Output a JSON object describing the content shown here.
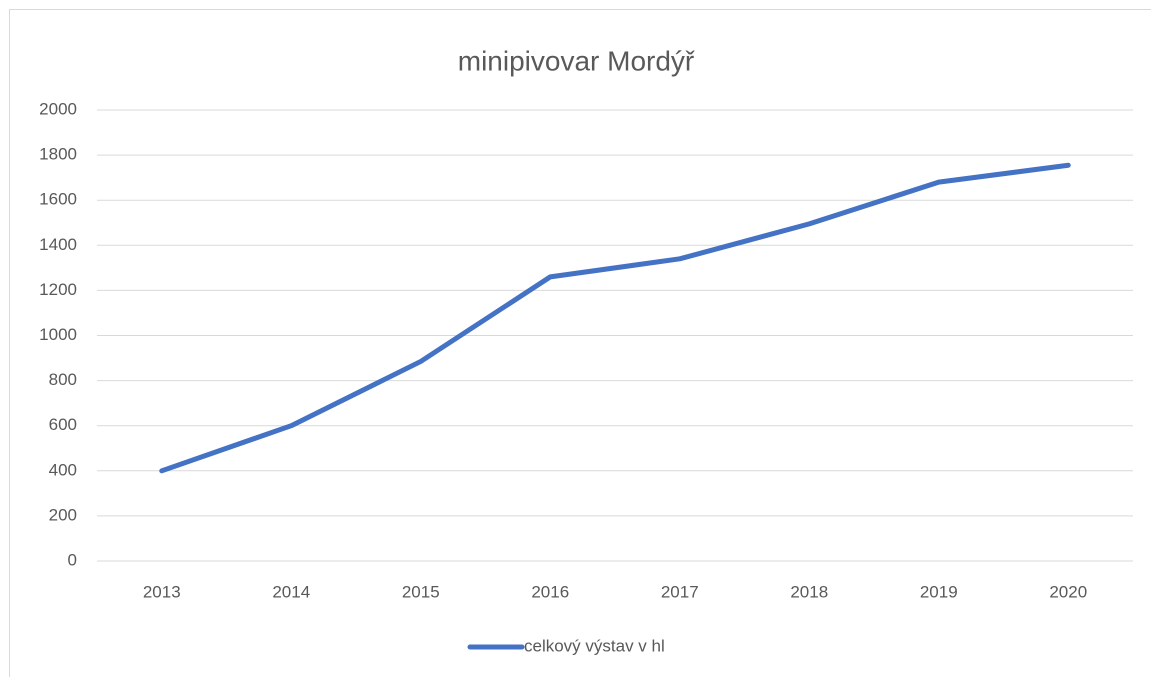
{
  "chart_data": {
    "type": "line",
    "title": "minipivovar Mordýř",
    "categories": [
      "2013",
      "2014",
      "2015",
      "2016",
      "2017",
      "2018",
      "2019",
      "2020"
    ],
    "series": [
      {
        "name": "celkový výstav v hl",
        "color": "#4472c4",
        "values": [
          400,
          600,
          885,
          1260,
          1340,
          1495,
          1680,
          1755
        ]
      }
    ],
    "ylim": [
      0,
      2000
    ],
    "yticks": [
      0,
      200,
      400,
      600,
      800,
      1000,
      1200,
      1400,
      1600,
      1800,
      2000
    ],
    "grid": true,
    "legend": "bottom"
  }
}
